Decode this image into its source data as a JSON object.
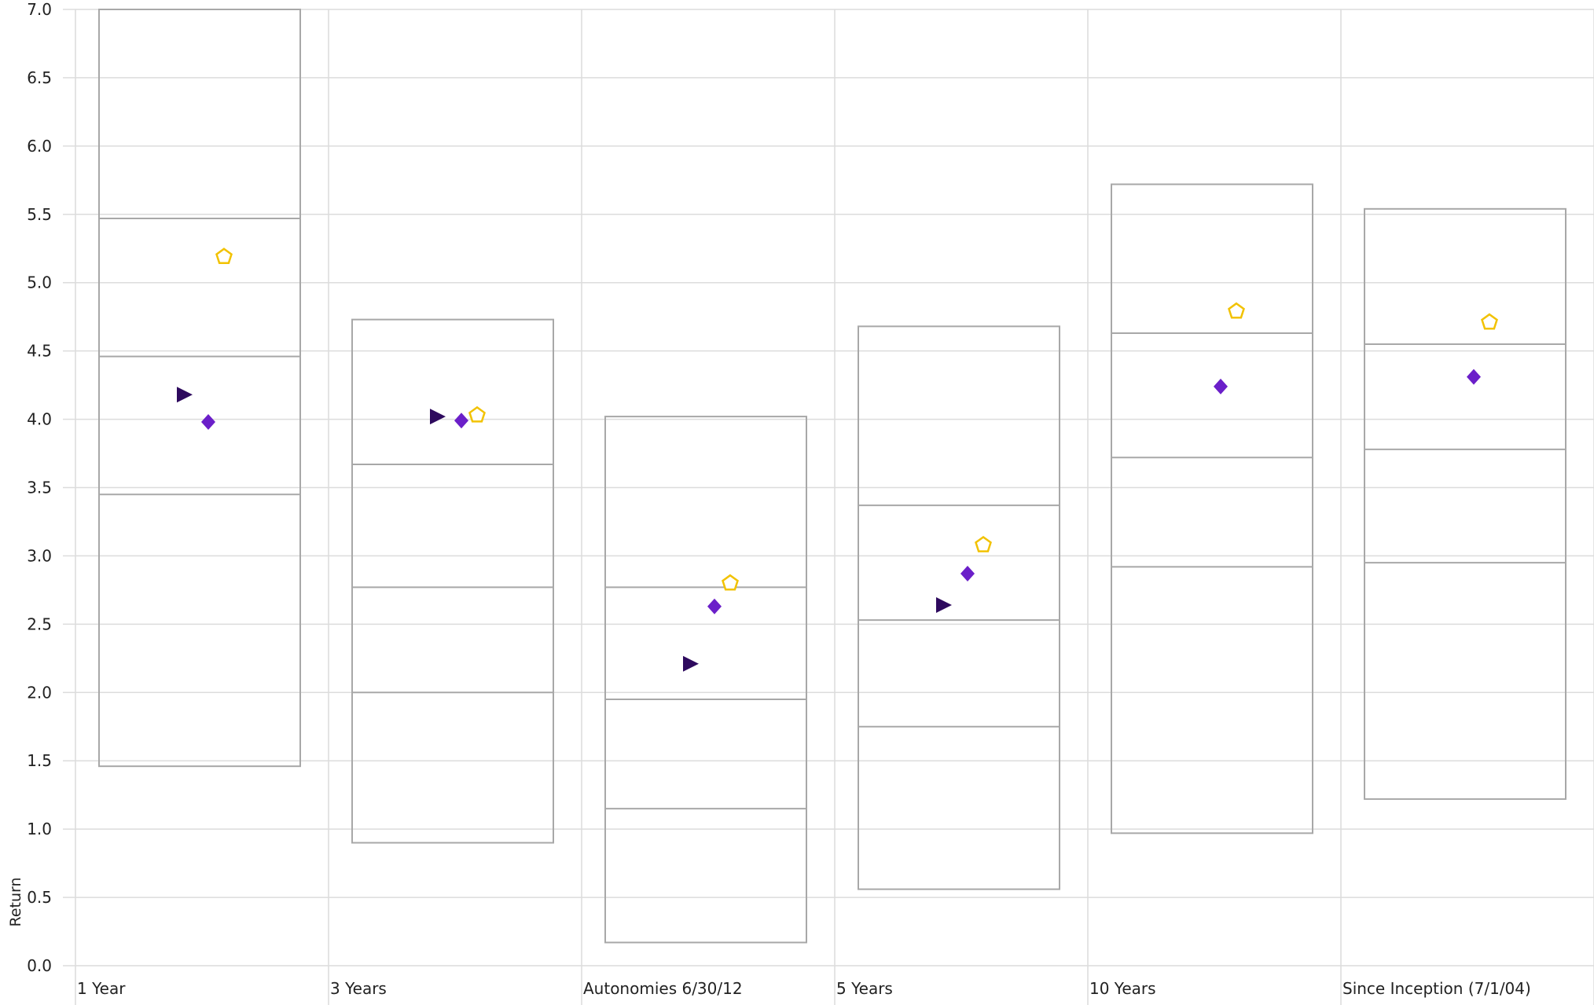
{
  "chart_data": {
    "type": "box",
    "ylabel": "Return",
    "ylim": [
      0,
      7
    ],
    "y_ticks": [
      "0.0",
      "0.5",
      "1.0",
      "1.5",
      "2.0",
      "2.5",
      "3.0",
      "3.5",
      "4.0",
      "4.5",
      "5.0",
      "5.5",
      "6.0",
      "6.5",
      "7.0"
    ],
    "grid": true,
    "categories": [
      "1 Year",
      "3 Years",
      "Autonomies 6/30/12",
      "5 Years",
      "10 Years",
      "Since Inception (7/1/04)"
    ],
    "boxes": [
      {
        "top": 7.0,
        "q75": 5.47,
        "median": 4.46,
        "q25": 3.45,
        "bottom": 1.46
      },
      {
        "top": 4.73,
        "q75": 3.67,
        "median": 2.77,
        "q25": 2.0,
        "bottom": 0.9
      },
      {
        "top": 4.02,
        "q75": 2.77,
        "median": 1.95,
        "q25": 1.15,
        "bottom": 0.17
      },
      {
        "top": 4.68,
        "q75": 3.37,
        "median": 2.53,
        "q25": 1.75,
        "bottom": 0.56
      },
      {
        "top": 5.72,
        "q75": 4.63,
        "median": 3.72,
        "q25": 2.92,
        "bottom": 0.97
      },
      {
        "top": 5.54,
        "q75": 4.55,
        "median": 3.78,
        "q25": 2.95,
        "bottom": 1.22
      }
    ],
    "series": [
      {
        "marker": "triangle-right",
        "color": "#2e0a5e",
        "values": [
          4.18,
          4.02,
          2.21,
          2.64,
          null,
          null
        ]
      },
      {
        "marker": "diamond",
        "color": "#6b1fc9",
        "values": [
          3.98,
          3.99,
          2.63,
          2.87,
          4.24,
          4.31
        ]
      },
      {
        "marker": "pentagon-open",
        "color": "#f2c200",
        "values": [
          5.19,
          4.03,
          2.8,
          3.08,
          4.79,
          4.71
        ]
      }
    ],
    "colors": {
      "grid": "#dcdcdc",
      "box": "#a8a8a8"
    }
  }
}
